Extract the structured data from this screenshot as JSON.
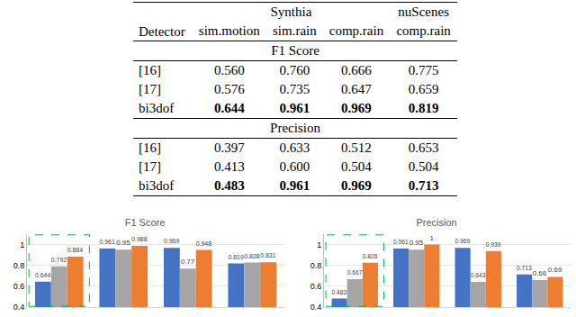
{
  "table": {
    "header": {
      "detector": "Detector",
      "groups": [
        {
          "label": "Synthia",
          "span": 3
        },
        {
          "label": "nuScenes",
          "span": 1
        }
      ],
      "columns": [
        "sim.motion",
        "sim.rain",
        "comp.rain",
        "comp.rain"
      ]
    },
    "sections": [
      {
        "title": "F1 Score",
        "rows": [
          {
            "detector": "[16]",
            "values": [
              "0.560",
              "0.760",
              "0.666",
              "0.775"
            ],
            "bold": false
          },
          {
            "detector": "[17]",
            "values": [
              "0.576",
              "0.735",
              "0.647",
              "0.659"
            ],
            "bold": false
          },
          {
            "detector": "bi3dof",
            "values": [
              "0.644",
              "0.961",
              "0.969",
              "0.819"
            ],
            "bold": true
          }
        ]
      },
      {
        "title": "Precision",
        "rows": [
          {
            "detector": "[16]",
            "values": [
              "0.397",
              "0.633",
              "0.512",
              "0.653"
            ],
            "bold": false
          },
          {
            "detector": "[17]",
            "values": [
              "0.413",
              "0.600",
              "0.504",
              "0.504"
            ],
            "bold": false
          },
          {
            "detector": "bi3dof",
            "values": [
              "0.483",
              "0.961",
              "0.969",
              "0.713"
            ],
            "bold": true
          }
        ]
      }
    ]
  },
  "chart_data": [
    {
      "type": "bar",
      "title": "F1 Score",
      "categories": [
        null,
        null,
        null,
        null
      ],
      "series": [
        {
          "color": "#4472c4",
          "values": [
            0.644,
            0.961,
            0.969,
            0.819
          ]
        },
        {
          "color": "#a5a5a5",
          "values": [
            0.792,
            0.95,
            0.77,
            0.828
          ]
        },
        {
          "color": "#ed7d31",
          "values": [
            0.884,
            0.988,
            0.948,
            0.831
          ]
        }
      ],
      "ylim": [
        0.4,
        1.1
      ],
      "yticks": [
        0.4,
        0.6,
        0.8,
        1
      ],
      "grid": true,
      "data_labels": true,
      "tick_labels": "y"
    },
    {
      "type": "bar",
      "title": "Precision",
      "categories": [
        null,
        null,
        null,
        null
      ],
      "series": [
        {
          "color": "#4472c4",
          "values": [
            0.483,
            0.961,
            0.969,
            0.713
          ]
        },
        {
          "color": "#a5a5a5",
          "values": [
            0.667,
            0.95,
            0.643,
            0.66
          ]
        },
        {
          "color": "#ed7d31",
          "values": [
            0.826,
            1,
            0.939,
            0.69
          ]
        }
      ],
      "ylim": [
        0.4,
        1.1
      ],
      "yticks": [
        0.4,
        0.6,
        0.8,
        1
      ],
      "grid": true,
      "data_labels": true,
      "tick_labels": "y"
    }
  ]
}
